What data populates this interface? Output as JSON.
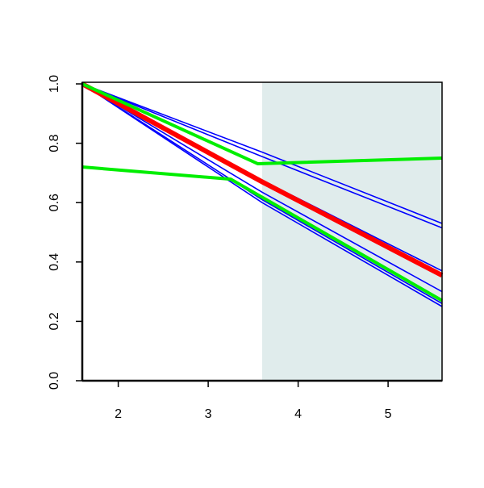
{
  "chart_data": {
    "type": "line",
    "xlim": [
      1.6,
      5.6
    ],
    "ylim": [
      0,
      1.0
    ],
    "xticks": [
      2,
      3,
      4,
      5
    ],
    "yticks": [
      {
        "value": 0,
        "label": "0.0"
      },
      0.2,
      0.4,
      0.6,
      0.8,
      {
        "value": 1,
        "label": "1.0"
      }
    ],
    "shade": {
      "x": [
        3.6,
        5.6
      ],
      "color": "#e0ecec"
    },
    "series": [
      {
        "color": "#0000ff",
        "width": 1.6,
        "x": [
          1.6,
          3.6,
          5.6
        ],
        "values": [
          1.0,
          0.77,
          0.53
        ]
      },
      {
        "color": "#0000ff",
        "width": 1.6,
        "x": [
          1.6,
          3.6,
          5.6
        ],
        "values": [
          1.0,
          0.755,
          0.515
        ]
      },
      {
        "color": "#0000ff",
        "width": 1.6,
        "x": [
          1.6,
          3.6,
          5.6
        ],
        "values": [
          1.0,
          0.675,
          0.37
        ]
      },
      {
        "color": "#0000ff",
        "width": 1.6,
        "x": [
          1.6,
          3.6,
          5.6
        ],
        "values": [
          1.0,
          0.635,
          0.3
        ]
      },
      {
        "color": "#0000ff",
        "width": 1.6,
        "x": [
          1.6,
          3.6,
          5.6
        ],
        "values": [
          1.0,
          0.6,
          0.25
        ]
      },
      {
        "color": "#0000ff",
        "width": 1.6,
        "x": [
          1.6,
          3.6,
          5.6
        ],
        "values": [
          1.0,
          0.61,
          0.26
        ]
      },
      {
        "color": "#ff0000",
        "width": 6,
        "x": [
          1.6,
          3.6,
          5.6
        ],
        "values": [
          1.0,
          0.67,
          0.355
        ]
      },
      {
        "color": "#00ee00",
        "width": 4,
        "x": [
          1.6,
          3.55,
          5.6
        ],
        "values": [
          1.0,
          0.731,
          0.75
        ]
      },
      {
        "color": "#00ee00",
        "width": 4,
        "x": [
          1.6,
          3.25,
          5.6
        ],
        "values": [
          0.72,
          0.679,
          0.27
        ]
      }
    ]
  }
}
